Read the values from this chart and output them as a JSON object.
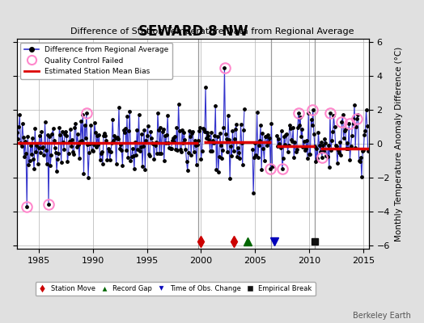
{
  "title": "SEWARD 8 NW",
  "subtitle": "Difference of Station Temperature Data from Regional Average",
  "ylabel": "Monthly Temperature Anomaly Difference (°C)",
  "xlim": [
    1983.0,
    2015.5
  ],
  "ylim": [
    -6.2,
    6.2
  ],
  "yticks": [
    -6,
    -4,
    -2,
    0,
    2,
    4,
    6
  ],
  "xticks": [
    1985,
    1990,
    1995,
    2000,
    2005,
    2010,
    2015
  ],
  "background_color": "#e0e0e0",
  "plot_background": "#ffffff",
  "grid_color": "#b0b0b0",
  "bias_segments": [
    {
      "x_start": 1983.0,
      "x_end": 1999.75,
      "bias": 0.05
    },
    {
      "x_start": 2000.25,
      "x_end": 2006.5,
      "bias": 0.1
    },
    {
      "x_start": 2007.0,
      "x_end": 2010.5,
      "bias": -0.15
    },
    {
      "x_start": 2011.0,
      "x_end": 2015.5,
      "bias": -0.3
    }
  ],
  "vertical_lines": [
    1999.75,
    2006.5,
    2010.5
  ],
  "station_moves": [
    2000.0,
    2003.0
  ],
  "record_gaps": [
    2004.3
  ],
  "time_of_obs_changes": [
    2006.8
  ],
  "empirical_breaks": [
    2010.5
  ],
  "qc_failed_approx": [
    [
      1983.9,
      -3.7
    ],
    [
      1985.9,
      -3.6
    ],
    [
      1989.4,
      1.8
    ],
    [
      2002.2,
      4.5
    ],
    [
      2006.4,
      -1.5
    ],
    [
      2007.5,
      -1.5
    ],
    [
      2009.0,
      1.8
    ],
    [
      2010.3,
      2.0
    ],
    [
      2011.2,
      -0.8
    ],
    [
      2011.9,
      1.8
    ],
    [
      2013.0,
      1.3
    ],
    [
      2013.7,
      1.2
    ],
    [
      2014.4,
      1.5
    ]
  ],
  "line_color": "#3333cc",
  "dot_color": "#000000",
  "bias_color": "#dd0000",
  "qc_color": "#ff88cc",
  "station_move_color": "#cc0000",
  "record_gap_color": "#006600",
  "time_obs_color": "#0000bb",
  "empirical_break_color": "#111111",
  "watermark": "Berkeley Earth",
  "seed": 42
}
